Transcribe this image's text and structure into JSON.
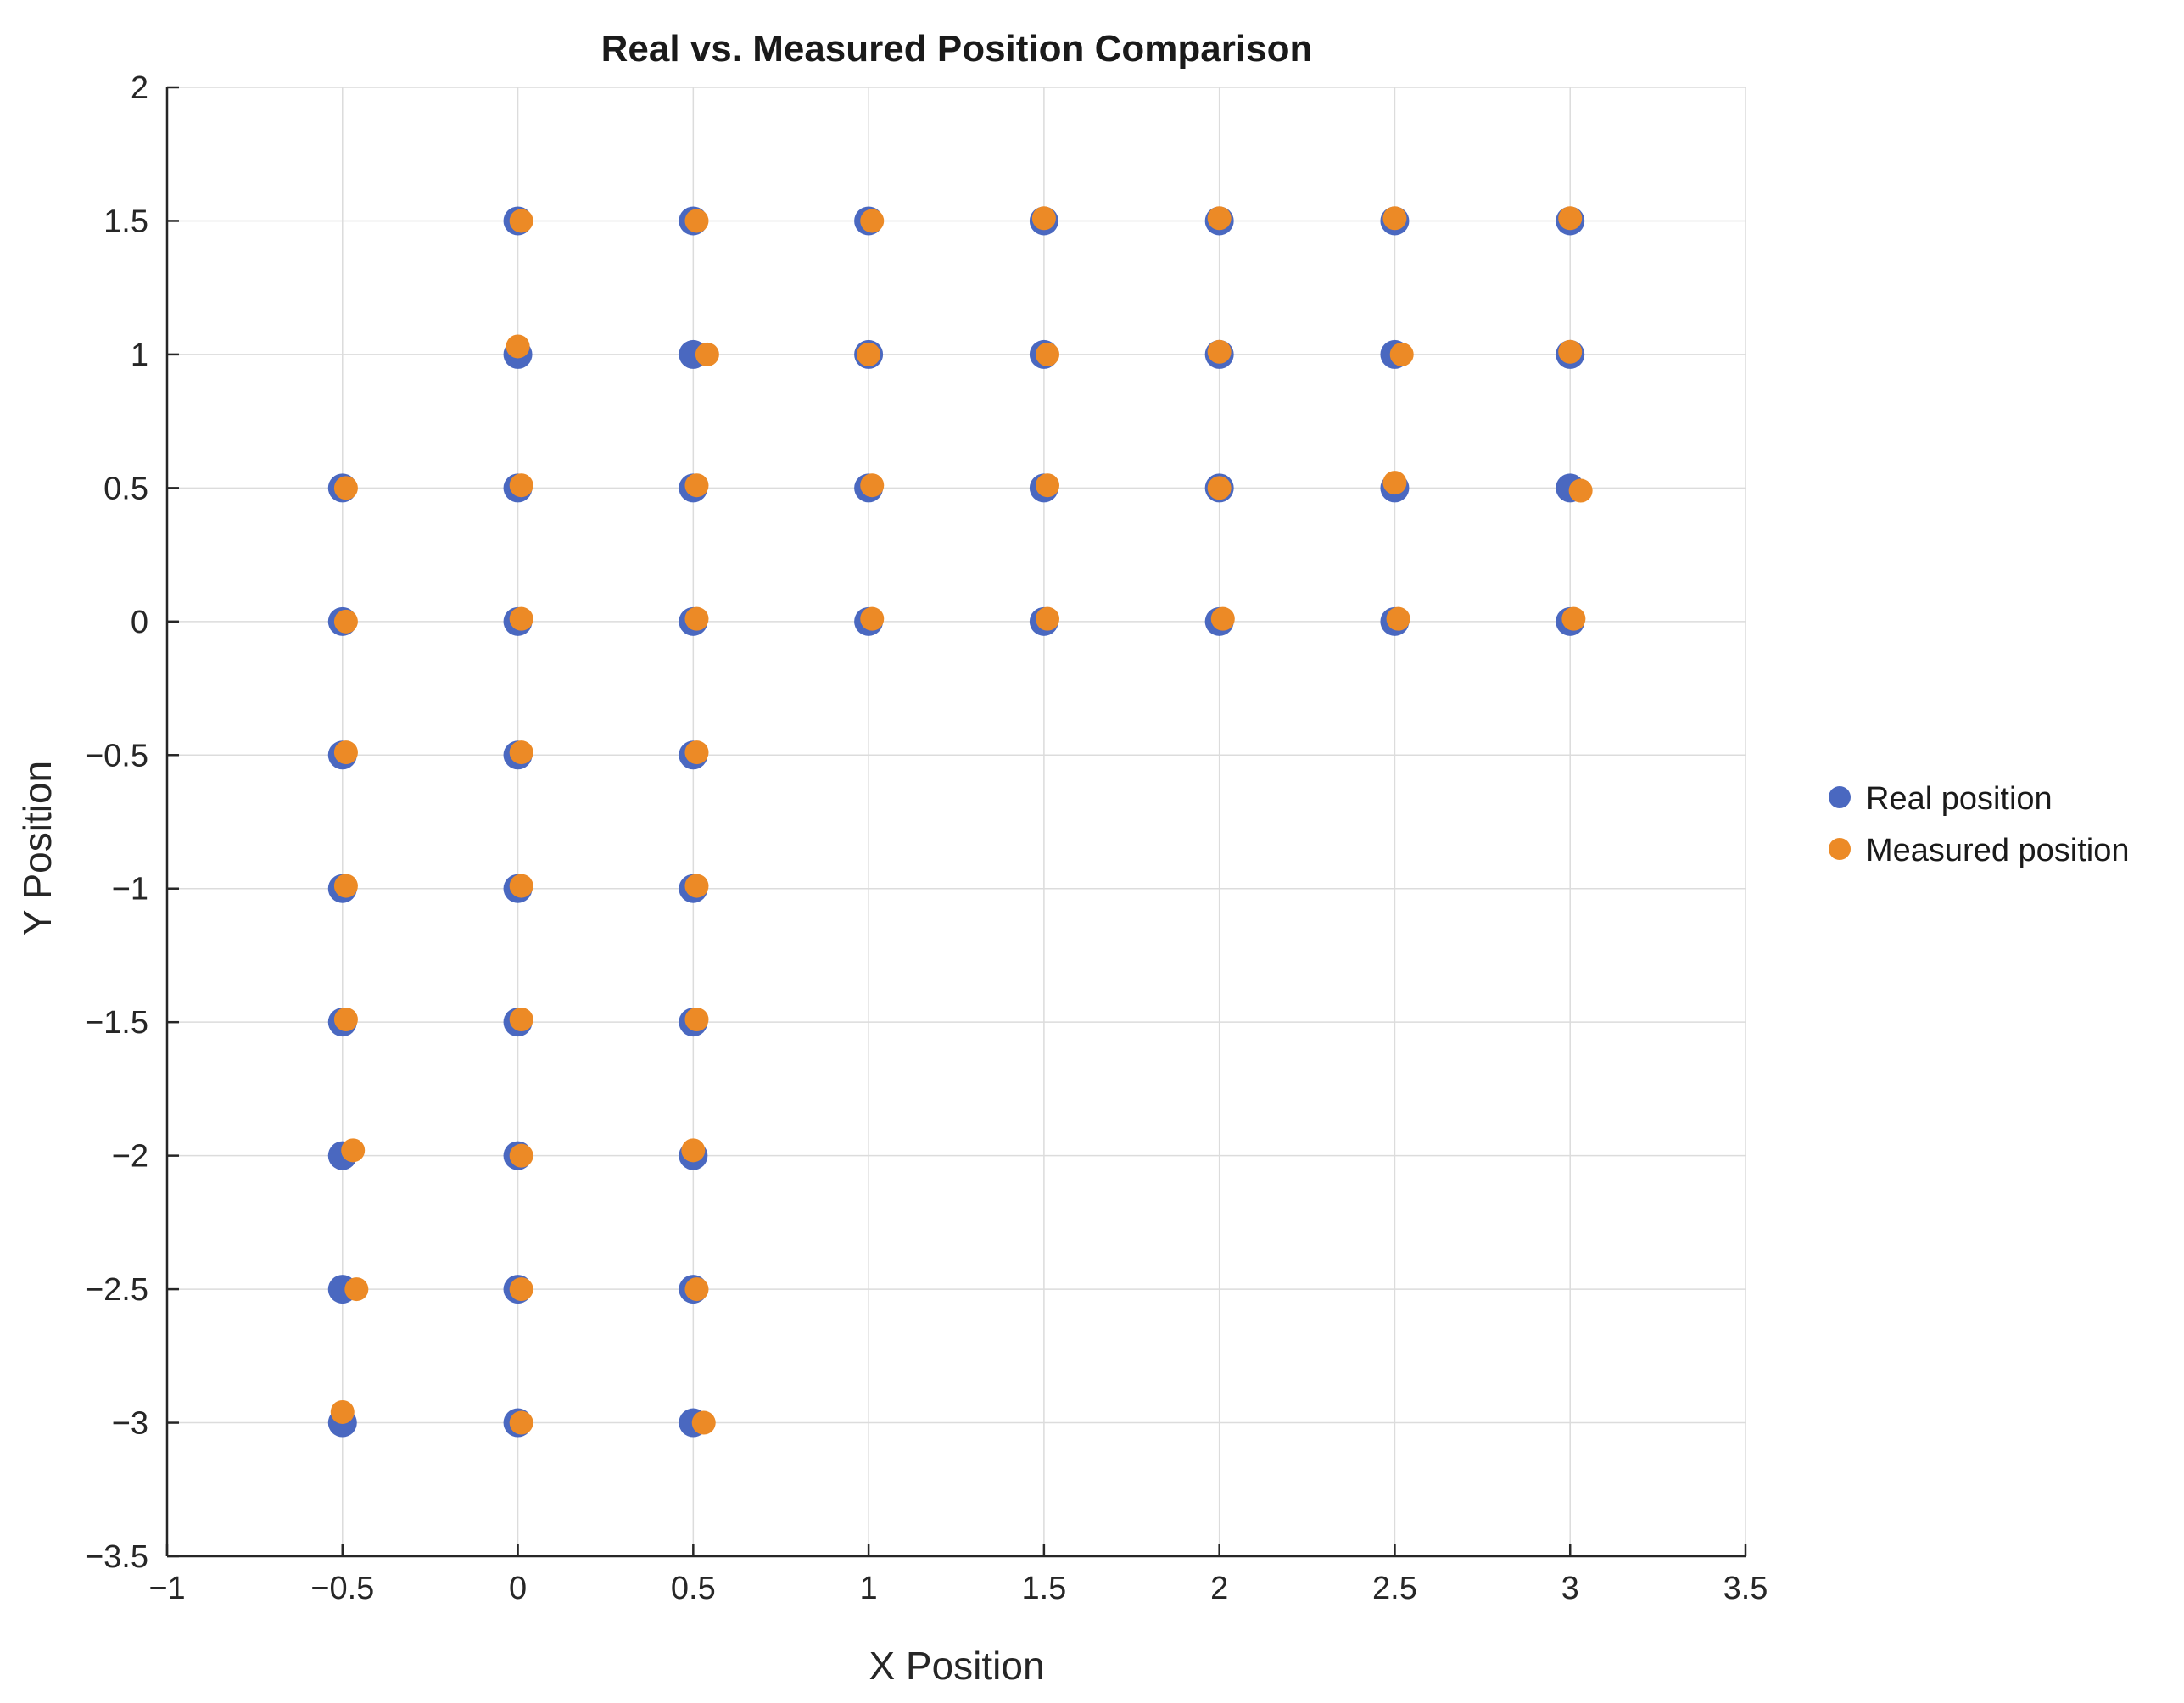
{
  "chart_data": {
    "type": "scatter",
    "title": "Real vs. Measured Position Comparison",
    "xlabel": "X Position",
    "ylabel": "Y Position",
    "xlim": [
      -1,
      3.5
    ],
    "ylim": [
      -3.5,
      2
    ],
    "xticks": [
      -1,
      -0.5,
      0,
      0.5,
      1,
      1.5,
      2,
      2.5,
      3,
      3.5
    ],
    "xtick_labels": [
      "−1",
      "−0.5",
      "0",
      "0.5",
      "1",
      "1.5",
      "2",
      "2.5",
      "3",
      "3.5"
    ],
    "yticks": [
      -3.5,
      -3,
      -2.5,
      -2,
      -1.5,
      -1,
      -0.5,
      0,
      0.5,
      1,
      1.5,
      2
    ],
    "ytick_labels": [
      "−3.5",
      "−3",
      "−2.5",
      "−2",
      "−1.5",
      "−1",
      "−0.5",
      "0",
      "0.5",
      "1",
      "1.5",
      "2"
    ],
    "grid": true,
    "legend_position": "right",
    "series": [
      {
        "name": "Real position",
        "color": "#4a68c0",
        "points": [
          [
            0,
            1.5
          ],
          [
            0.5,
            1.5
          ],
          [
            1,
            1.5
          ],
          [
            1.5,
            1.5
          ],
          [
            2,
            1.5
          ],
          [
            2.5,
            1.5
          ],
          [
            3,
            1.5
          ],
          [
            0,
            1
          ],
          [
            0.5,
            1
          ],
          [
            1,
            1
          ],
          [
            1.5,
            1
          ],
          [
            2,
            1
          ],
          [
            2.5,
            1
          ],
          [
            3,
            1
          ],
          [
            -0.5,
            0.5
          ],
          [
            0,
            0.5
          ],
          [
            0.5,
            0.5
          ],
          [
            1,
            0.5
          ],
          [
            1.5,
            0.5
          ],
          [
            2,
            0.5
          ],
          [
            2.5,
            0.5
          ],
          [
            3,
            0.5
          ],
          [
            -0.5,
            0
          ],
          [
            0,
            0
          ],
          [
            0.5,
            0
          ],
          [
            1,
            0
          ],
          [
            1.5,
            0
          ],
          [
            2,
            0
          ],
          [
            2.5,
            0
          ],
          [
            3,
            0
          ],
          [
            -0.5,
            -0.5
          ],
          [
            0,
            -0.5
          ],
          [
            0.5,
            -0.5
          ],
          [
            -0.5,
            -1
          ],
          [
            0,
            -1
          ],
          [
            0.5,
            -1
          ],
          [
            -0.5,
            -1.5
          ],
          [
            0,
            -1.5
          ],
          [
            0.5,
            -1.5
          ],
          [
            -0.5,
            -2
          ],
          [
            0,
            -2
          ],
          [
            0.5,
            -2
          ],
          [
            -0.5,
            -2.5
          ],
          [
            0,
            -2.5
          ],
          [
            0.5,
            -2.5
          ],
          [
            -0.5,
            -3
          ],
          [
            0,
            -3
          ],
          [
            0.5,
            -3
          ]
        ]
      },
      {
        "name": "Measured position",
        "color": "#ec8a26",
        "points": [
          [
            0.01,
            1.5
          ],
          [
            0.51,
            1.5
          ],
          [
            1.01,
            1.5
          ],
          [
            1.5,
            1.51
          ],
          [
            2.0,
            1.51
          ],
          [
            2.5,
            1.51
          ],
          [
            3.0,
            1.51
          ],
          [
            0.0,
            1.03
          ],
          [
            0.54,
            1.0
          ],
          [
            1.0,
            1.0
          ],
          [
            1.51,
            1.0
          ],
          [
            2.0,
            1.01
          ],
          [
            2.52,
            1.0
          ],
          [
            3.0,
            1.01
          ],
          [
            -0.49,
            0.5
          ],
          [
            0.01,
            0.51
          ],
          [
            0.51,
            0.51
          ],
          [
            1.01,
            0.51
          ],
          [
            1.51,
            0.51
          ],
          [
            2.0,
            0.5
          ],
          [
            2.5,
            0.52
          ],
          [
            3.03,
            0.49
          ],
          [
            -0.49,
            0.0
          ],
          [
            0.01,
            0.01
          ],
          [
            0.51,
            0.01
          ],
          [
            1.01,
            0.01
          ],
          [
            1.51,
            0.01
          ],
          [
            2.01,
            0.01
          ],
          [
            2.51,
            0.01
          ],
          [
            3.01,
            0.01
          ],
          [
            -0.49,
            -0.49
          ],
          [
            0.01,
            -0.49
          ],
          [
            0.51,
            -0.49
          ],
          [
            -0.49,
            -0.99
          ],
          [
            0.01,
            -0.99
          ],
          [
            0.51,
            -0.99
          ],
          [
            -0.49,
            -1.49
          ],
          [
            0.01,
            -1.49
          ],
          [
            0.51,
            -1.49
          ],
          [
            -0.47,
            -1.98
          ],
          [
            0.01,
            -2.0
          ],
          [
            0.5,
            -1.98
          ],
          [
            -0.46,
            -2.5
          ],
          [
            0.01,
            -2.5
          ],
          [
            0.51,
            -2.5
          ],
          [
            -0.5,
            -2.96
          ],
          [
            0.01,
            -3.0
          ],
          [
            0.53,
            -3.0
          ]
        ]
      }
    ]
  }
}
